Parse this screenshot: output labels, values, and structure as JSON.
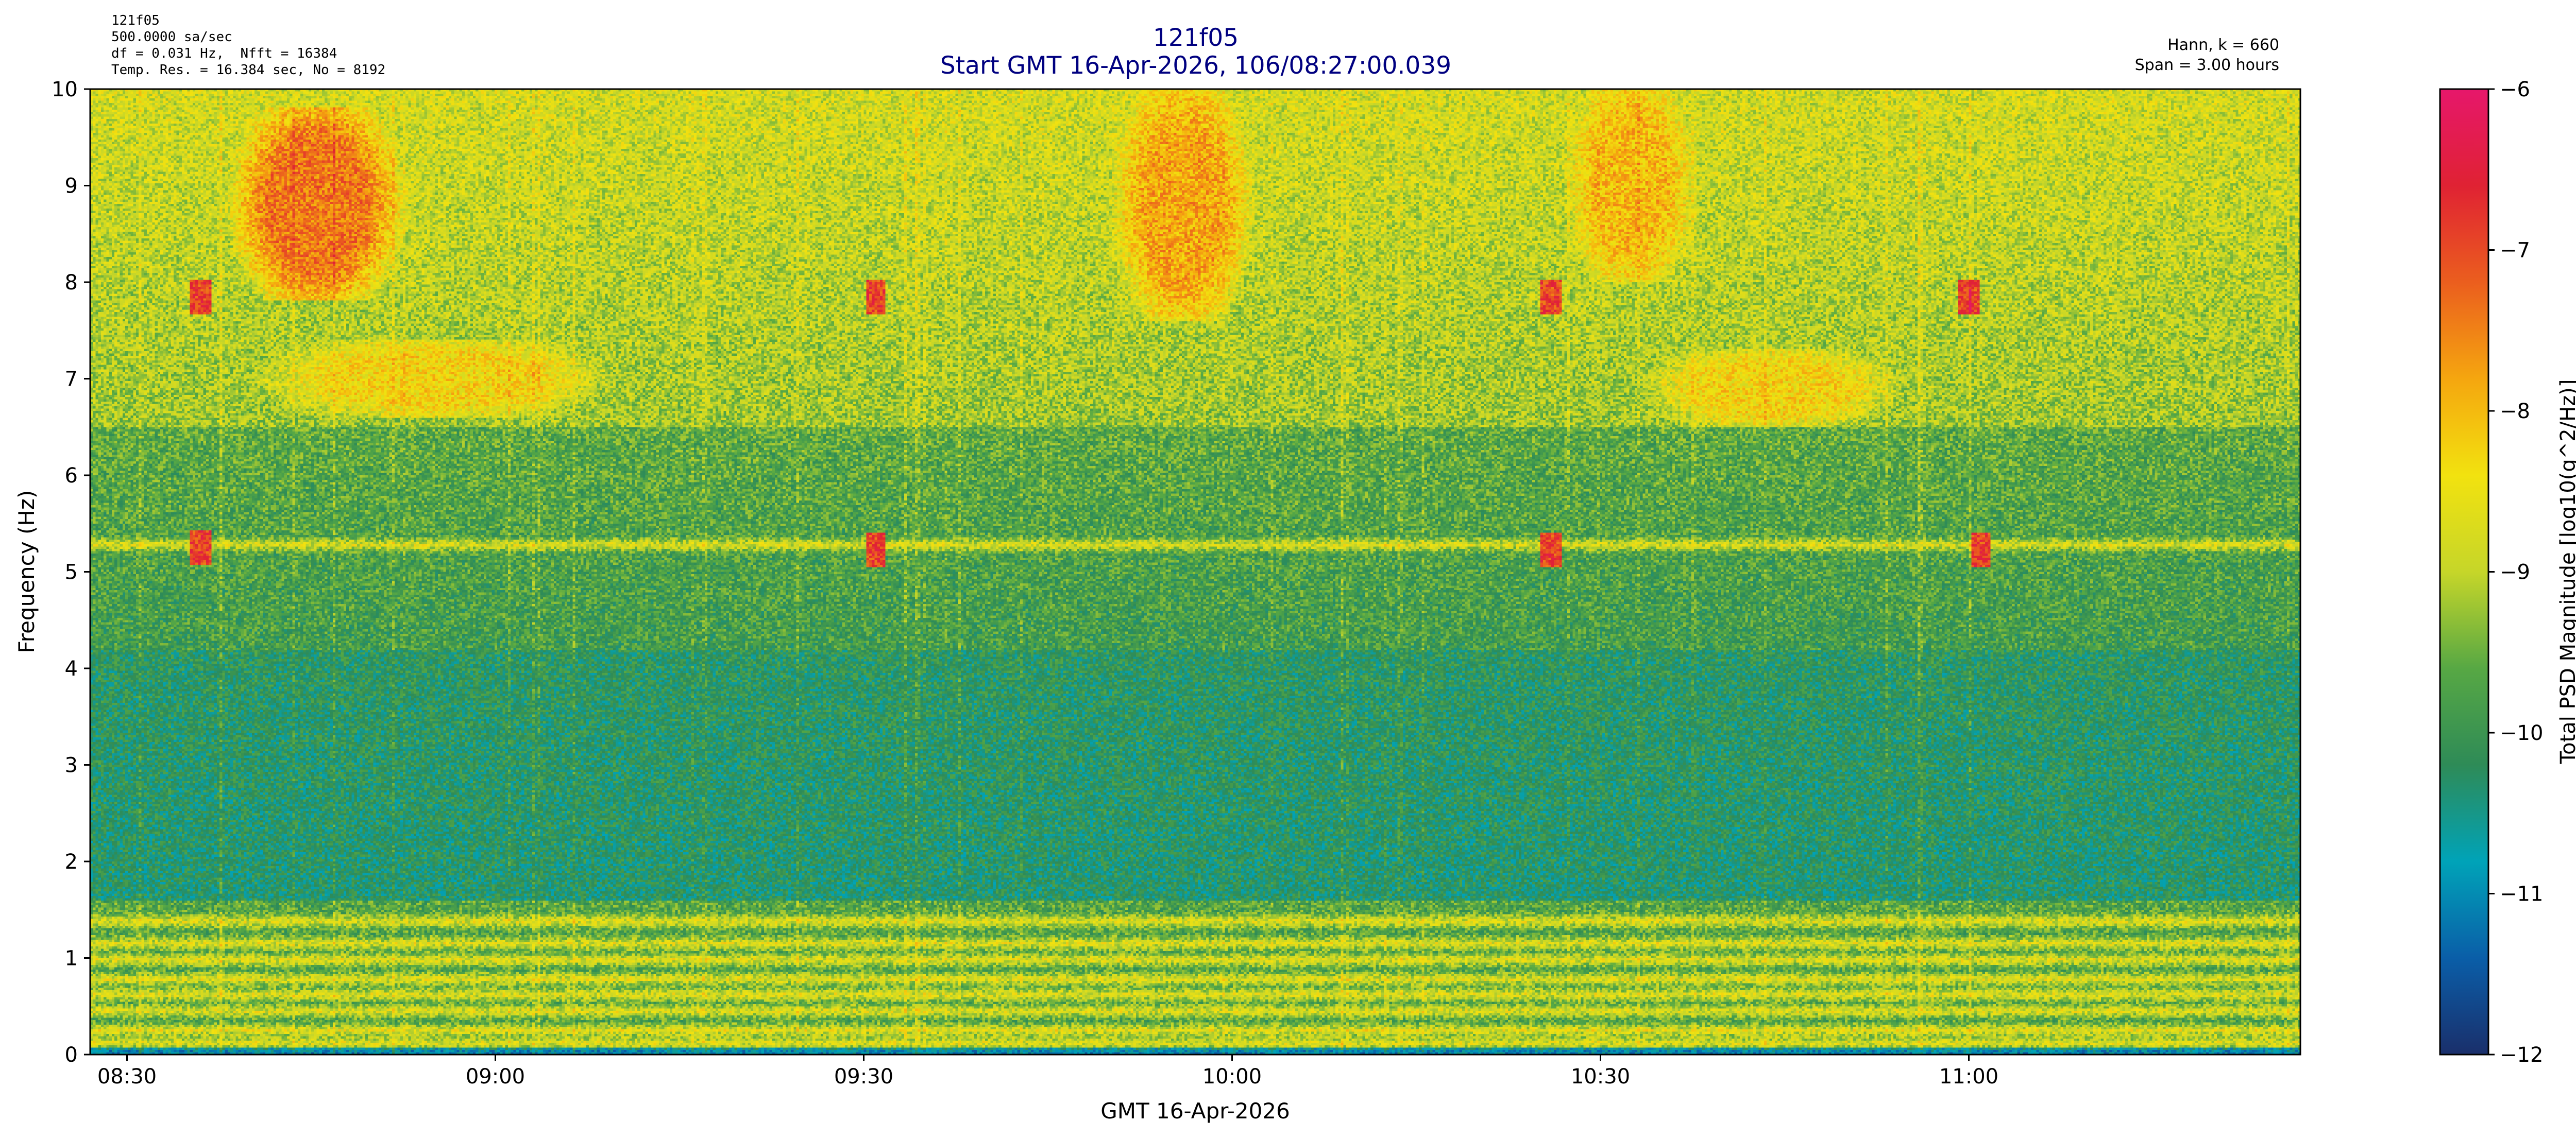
{
  "header": {
    "info_lines": [
      "121f05",
      "500.0000 sa/sec",
      "df = 0.031 Hz,  Nfft = 16384",
      "Temp. Res. = 16.384 sec, No = 8192"
    ],
    "title_line1": "121f05",
    "title_line2": "Start GMT 16-Apr-2026, 106/08:27:00.039",
    "right_line1": "Hann, k = 660",
    "right_line2": "Span = 3.00 hours"
  },
  "chart_data": {
    "type": "heatmap",
    "title": "121f05",
    "subtitle": "Start GMT 16-Apr-2026, 106/08:27:00.039",
    "xlabel": "GMT 16-Apr-2026",
    "ylabel": "Frequency (Hz)",
    "colorbar_label": "Total PSD Magnitude [log10(g^2/Hz)]",
    "x_range": [
      "08:27:00",
      "11:27:00"
    ],
    "x_ticks": [
      "08:30",
      "09:00",
      "09:30",
      "10:00",
      "10:30",
      "11:00"
    ],
    "y_range": [
      0,
      10
    ],
    "y_ticks": [
      0,
      1,
      2,
      3,
      4,
      5,
      6,
      7,
      8,
      9,
      10
    ],
    "color_range": [
      -12,
      -6
    ],
    "color_ticks": [
      -12,
      -11,
      -10,
      -9,
      -8,
      -7,
      -6
    ],
    "colormap": [
      "#1a2f6b",
      "#0a5ea8",
      "#00a3b8",
      "#2e8b57",
      "#57a844",
      "#c6d629",
      "#f2e20f",
      "#f5a60f",
      "#eb5e1e",
      "#e02233",
      "#e6176b"
    ],
    "grid": false,
    "features": {
      "horizontal_bands_hz": [
        0.12,
        0.25,
        0.45,
        0.62,
        0.78,
        0.98,
        1.15,
        1.38,
        5.28
      ],
      "high_energy_regions": [
        {
          "t_start": "08:38",
          "t_end": "08:53",
          "f_low": 7.8,
          "f_high": 9.8,
          "level": -7.4
        },
        {
          "t_start": "09:50",
          "t_end": "10:02",
          "f_low": 7.6,
          "f_high": 10.0,
          "level": -7.8
        },
        {
          "t_start": "10:27",
          "t_end": "10:38",
          "f_low": 8.0,
          "f_high": 10.0,
          "level": -8.0
        },
        {
          "t_start": "08:40",
          "t_end": "09:10",
          "f_low": 6.6,
          "f_high": 7.4,
          "level": -8.3
        },
        {
          "t_start": "10:33",
          "t_end": "10:55",
          "f_low": 6.5,
          "f_high": 7.3,
          "level": -8.3
        }
      ],
      "hot_spots": [
        {
          "t": "08:36",
          "f": 7.85
        },
        {
          "t": "08:36",
          "f": 5.25
        },
        {
          "t": "09:31",
          "f": 7.85
        },
        {
          "t": "09:31",
          "f": 5.22
        },
        {
          "t": "10:26",
          "f": 7.85
        },
        {
          "t": "10:26",
          "f": 5.22
        },
        {
          "t": "11:00",
          "f": 7.85
        },
        {
          "t": "11:01",
          "f": 5.22
        }
      ]
    }
  }
}
